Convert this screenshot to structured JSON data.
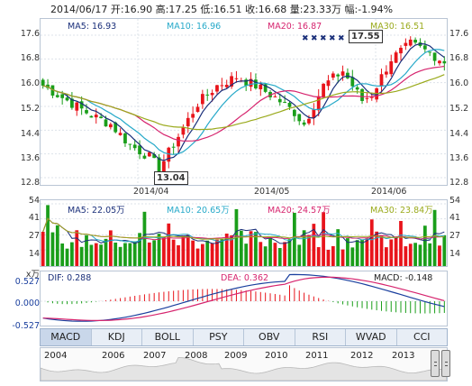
{
  "quote": {
    "date": "2014/06/17",
    "open_label": "开:",
    "open": "16.90",
    "high_label": "高:",
    "high": "17.25",
    "low_label": "低:",
    "low": "16.51",
    "close_label": "收:",
    "close": "16.68",
    "volume_label": "量:",
    "volume": "23.33万",
    "change_label": "幅:",
    "change": "-1.94%"
  },
  "price_panel": {
    "ma5": "MA5: 16.93",
    "ma10": "MA10: 16.96",
    "ma20": "MA20: 16.87",
    "ma30": "MA30: 16.51",
    "y_ticks": [
      "17.6",
      "16.8",
      "16.0",
      "15.2",
      "14.4",
      "13.6",
      "12.8"
    ],
    "x_ticks": [
      "2014/04",
      "2014/05",
      "2014/06"
    ],
    "high_callout": "17.55",
    "low_callout": "13.04"
  },
  "volume_panel": {
    "ma5": "MA5: 22.05万",
    "ma10": "MA10: 20.65万",
    "ma20": "MA20: 24.57万",
    "ma30": "MA30: 23.84万",
    "y_ticks": [
      "54",
      "41",
      "27",
      "14"
    ],
    "unit": "x万"
  },
  "macd_panel": {
    "dif": "DIF: 0.288",
    "dea": "DEA: 0.362",
    "macd": "MACD: -0.148",
    "y_ticks": [
      "0.527",
      "0.000",
      "-0.527"
    ]
  },
  "tabs": [
    "MACD",
    "KDJ",
    "BOLL",
    "PSY",
    "OBV",
    "RSI",
    "WVAD",
    "CCI"
  ],
  "timeline_years": [
    "2004",
    "2006",
    "2007",
    "2008",
    "2009",
    "2010",
    "2011",
    "2012",
    "2013"
  ],
  "colors": {
    "up": "#e8141b",
    "down": "#1a9e1a",
    "ma5": "#1a2f7a",
    "ma10": "#26a9c9",
    "ma20": "#d6246e",
    "ma30": "#9aaa1c"
  }
}
